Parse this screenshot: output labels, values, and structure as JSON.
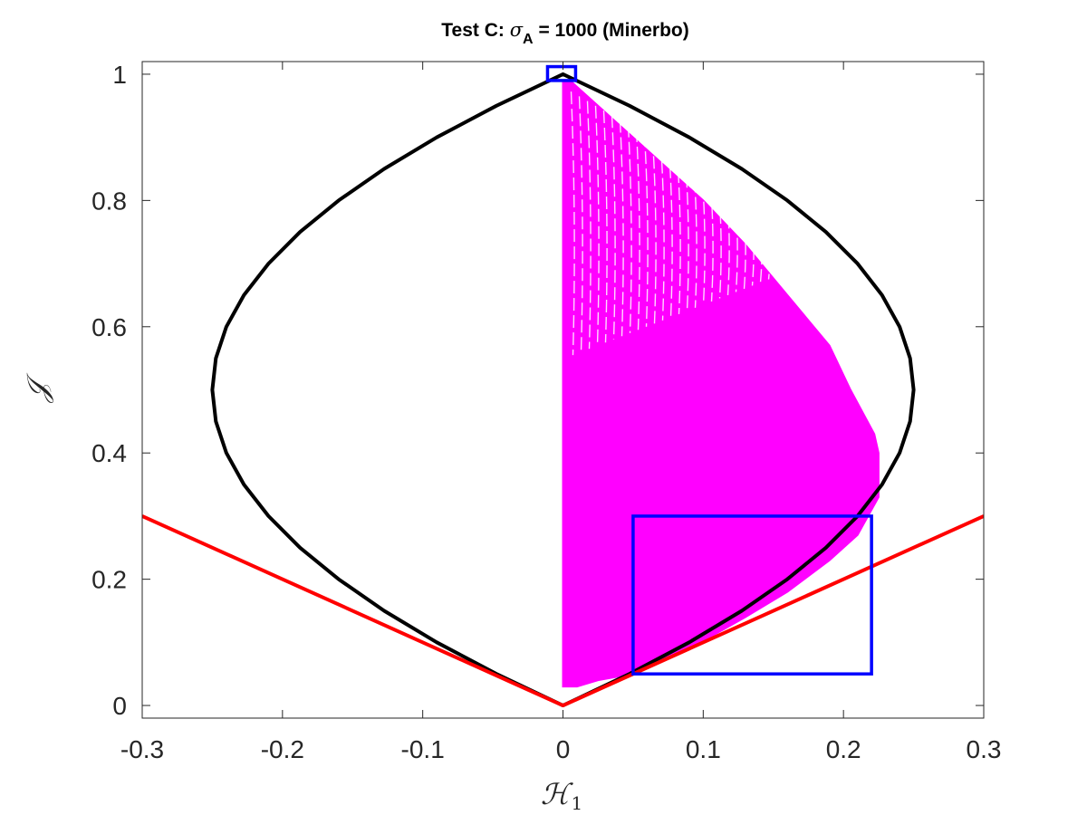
{
  "chart_data": {
    "type": "scatter",
    "title": {
      "prefix": "Test C: ",
      "symbol": "σ",
      "subscript": "A",
      "suffix": " = 1000 (Minerbo)"
    },
    "xlabel": {
      "main": "ℋ",
      "subscript": "1"
    },
    "ylabel": "𝒥",
    "xlim": [
      -0.3,
      0.3
    ],
    "ylim": [
      -0.02,
      1.02
    ],
    "xticks": [
      -0.3,
      -0.2,
      -0.1,
      0,
      0.1,
      0.2,
      0.3
    ],
    "xtick_labels": [
      "-0.3",
      "-0.2",
      "-0.1",
      "0",
      "0.1",
      "0.2",
      "0.3"
    ],
    "yticks": [
      0,
      0.2,
      0.4,
      0.6,
      0.8,
      1
    ],
    "ytick_labels": [
      "0",
      "0.2",
      "0.4",
      "0.6",
      "0.8",
      "1"
    ],
    "grid": false,
    "legend": null,
    "curves": [
      {
        "color": "#000000",
        "description": "realizability boundary |H1| = J(1-J)",
        "points": [
          [
            0,
            0
          ],
          [
            0.0475,
            0.05
          ],
          [
            0.09,
            0.1
          ],
          [
            0.1275,
            0.15
          ],
          [
            0.16,
            0.2
          ],
          [
            0.1875,
            0.25
          ],
          [
            0.21,
            0.3
          ],
          [
            0.2275,
            0.35
          ],
          [
            0.24,
            0.4
          ],
          [
            0.2475,
            0.45
          ],
          [
            0.25,
            0.5
          ],
          [
            0.2475,
            0.55
          ],
          [
            0.24,
            0.6
          ],
          [
            0.2275,
            0.65
          ],
          [
            0.21,
            0.7
          ],
          [
            0.1875,
            0.75
          ],
          [
            0.16,
            0.8
          ],
          [
            0.1275,
            0.85
          ],
          [
            0.09,
            0.9
          ],
          [
            0.0475,
            0.95
          ],
          [
            0,
            1
          ],
          [
            -0.0475,
            0.95
          ],
          [
            -0.09,
            0.9
          ],
          [
            -0.1275,
            0.85
          ],
          [
            -0.16,
            0.8
          ],
          [
            -0.1875,
            0.75
          ],
          [
            -0.21,
            0.7
          ],
          [
            -0.2275,
            0.65
          ],
          [
            -0.24,
            0.6
          ],
          [
            -0.2475,
            0.55
          ],
          [
            -0.25,
            0.5
          ],
          [
            -0.2475,
            0.45
          ],
          [
            -0.24,
            0.4
          ],
          [
            -0.2275,
            0.35
          ],
          [
            -0.21,
            0.3
          ],
          [
            -0.1875,
            0.25
          ],
          [
            -0.16,
            0.2
          ],
          [
            -0.1275,
            0.15
          ],
          [
            -0.09,
            0.1
          ],
          [
            -0.0475,
            0.05
          ],
          [
            0,
            0
          ]
        ]
      },
      {
        "color": "#ff0000",
        "description": "line J = |H1|",
        "points": [
          [
            -0.3,
            0.3
          ],
          [
            0,
            0
          ],
          [
            0.3,
            0.3
          ]
        ]
      }
    ],
    "data_region": {
      "color": "#ff00ff",
      "description": "points with H1 >= 0, J from ~0.03 to 1, bounded on right by ~0.96 of boundary",
      "outline": [
        [
          0,
          0.03
        ],
        [
          0.01,
          0.03
        ],
        [
          0.025,
          0.04
        ],
        [
          0.05,
          0.05
        ],
        [
          0.09,
          0.09
        ],
        [
          0.13,
          0.14
        ],
        [
          0.16,
          0.18
        ],
        [
          0.19,
          0.23
        ],
        [
          0.21,
          0.27
        ],
        [
          0.225,
          0.33
        ],
        [
          0.225,
          0.4
        ],
        [
          0.222,
          0.43
        ],
        [
          0.205,
          0.5
        ],
        [
          0.19,
          0.57
        ],
        [
          0.16,
          0.65
        ],
        [
          0.13,
          0.73
        ],
        [
          0.1,
          0.8
        ],
        [
          0.06,
          0.88
        ],
        [
          0.03,
          0.94
        ],
        [
          0.005,
          0.99
        ],
        [
          0,
          0.99
        ]
      ],
      "streak_count": 40
    },
    "rectangles": [
      {
        "color": "#0000ff",
        "x": [
          0.05,
          0.22
        ],
        "y": [
          0.05,
          0.3
        ]
      },
      {
        "color": "#0000ff",
        "x": [
          -0.011,
          0.009
        ],
        "y": [
          0.99,
          1.012
        ]
      }
    ]
  }
}
